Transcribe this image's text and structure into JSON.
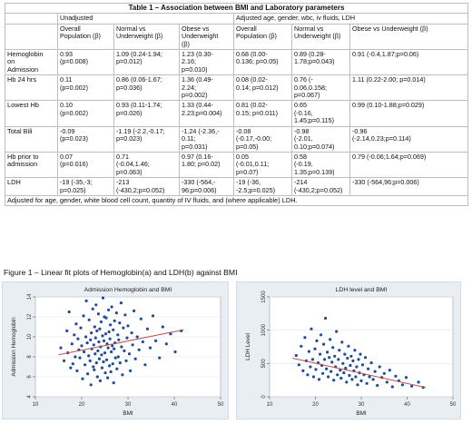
{
  "table": {
    "title": "Table 1 – Association between BMI and Laboratory parameters",
    "group_headers": [
      "Unadjusted",
      "Adjusted age, gender, wbc, iv fluids, LDH"
    ],
    "column_headers": [
      "Overall\nPopulation (β)",
      "Normal vs\nUnderweight (β)",
      "Obese vs\nUnderweight\n(β)",
      "Overall\nPopulation (β)",
      "Normal vs\nUnderweight (β)",
      "Obese vs Underweight (β)"
    ],
    "rows": [
      {
        "label": "Hemoglobin\non\nAdmission",
        "cells": [
          "0.93\n(p=0.008)",
          "1.09 (0.24-1.94;\np=0.012)",
          "1.23 (0.30-\n2.16;\np=0.010)",
          "0.68 (0.00-\n0.136; p=0.05)",
          "0.89 (0.28-\n1.78;p=0.043)",
          "0.91 (-0.4,1.87;p=0.06)"
        ]
      },
      {
        "label": "Hb 24 hrs",
        "cells": [
          "0.11\n(p=0.002)",
          "0.86 (0.06-1.67;\np=0.036)",
          "1.36 (0.49-\n2.24;\np=0.002)",
          "0.08 (0.02-\n0.14; p=0.012)",
          "0.76 (-\n0.06,0.158;\np=0.067)",
          "1.11 (0.22-2.00; p=0.014)"
        ]
      },
      {
        "label": "Lowest Hb",
        "cells": [
          "0.10\n(p=0.002)",
          "0.93 (0.11-1.74;\np=0.026)",
          "1.33 (0.44-\n2.23;p=0.004)",
          "0.81 (0.02-\n0.15; p=0.011)",
          "0.65\n(-0.16,\n1.45;p=0.115)",
          "0.99 (0.10-1.88;p=0.029)"
        ]
      },
      {
        "label": "Total Bili",
        "cells": [
          "-0.09\n(p=0.023)",
          "-1.19 (-2.2,-0.17;\np=0.023)",
          "-1.24 (-2.36,-\n0.11;\np=0.031)",
          "-0.08\n(-0.17,-0.00;\np=0.05)",
          "-0.98\n(-2.01,\n0.10;p=0.074)",
          "-0.96\n(-2.14,0.23;p=0.114)"
        ]
      },
      {
        "label": "Hb prior to\nadmission",
        "cells": [
          "0.07\n(p=0.016)",
          "0.71\n(-0.04,1.46;\np=0.063)",
          "0.97 (0.16-\n1.80; p=0.02)",
          "0.05\n(-0.01,0.11;\np=0.07)",
          "0.58\n(-0.19,\n1.35;p=0.139)",
          "0.79 (-0.06;1.64;p=0.069)"
        ]
      },
      {
        "label": "LDH",
        "cells": [
          "-19 (-35,-3;\np=0.025)",
          "-213\n(-430,2;p=0.052)",
          "-330 (-564,-\n96;p=0.006)",
          "-19 (-36,\n-2.5;p=0.025)",
          "-214\n(-430,2;p=0.052)",
          "-330 (-564,96;p=0.006)"
        ]
      }
    ],
    "footnote": "Adjusted for age, gender, white blood cell count, quantity of IV fluids, and (where applicable) LDH."
  },
  "figure_caption": "Figure 1 – Linear fit plots of Hemoglobin(a)  and LDH(b)  against BMI",
  "chart_data": [
    {
      "type": "scatter",
      "title": "Admission Hemoglobin and BMI",
      "xlabel": "BMI",
      "ylabel": "Admission Hemoglobin",
      "xlim": [
        10,
        50
      ],
      "ylim": [
        4,
        14
      ],
      "xticks": [
        10,
        20,
        30,
        40,
        50
      ],
      "yticks": [
        4,
        6,
        8,
        10,
        12,
        14
      ],
      "fit_line": {
        "x": [
          15,
          42
        ],
        "y": [
          8.2,
          10.7
        ]
      },
      "points": [
        [
          15.5,
          8.9
        ],
        [
          16.2,
          7.6
        ],
        [
          16.8,
          10.6
        ],
        [
          17.0,
          8.4
        ],
        [
          17.3,
          12.5
        ],
        [
          17.6,
          6.9
        ],
        [
          17.9,
          9.3
        ],
        [
          18.1,
          7.3
        ],
        [
          18.4,
          10.2
        ],
        [
          18.6,
          8.0
        ],
        [
          18.8,
          11.3
        ],
        [
          19.0,
          6.6
        ],
        [
          19.2,
          9.8
        ],
        [
          19.4,
          8.7
        ],
        [
          19.6,
          7.9
        ],
        [
          19.8,
          10.9
        ],
        [
          20.0,
          9.1
        ],
        [
          20.2,
          5.8
        ],
        [
          20.4,
          12.1
        ],
        [
          20.5,
          8.5
        ],
        [
          20.7,
          7.2
        ],
        [
          20.9,
          10.0
        ],
        [
          21.0,
          13.6
        ],
        [
          21.2,
          9.4
        ],
        [
          21.3,
          6.3
        ],
        [
          21.5,
          8.1
        ],
        [
          21.6,
          11.7
        ],
        [
          21.8,
          7.6
        ],
        [
          21.9,
          9.7
        ],
        [
          22.0,
          5.2
        ],
        [
          22.1,
          10.4
        ],
        [
          22.2,
          8.8
        ],
        [
          22.4,
          12.8
        ],
        [
          22.5,
          7.0
        ],
        [
          22.6,
          9.2
        ],
        [
          22.7,
          6.7
        ],
        [
          22.8,
          11.0
        ],
        [
          22.9,
          8.3
        ],
        [
          23.0,
          9.9
        ],
        [
          23.1,
          13.2
        ],
        [
          23.2,
          7.4
        ],
        [
          23.3,
          10.6
        ],
        [
          23.4,
          6.0
        ],
        [
          23.5,
          8.6
        ],
        [
          23.6,
          12.3
        ],
        [
          23.7,
          9.5
        ],
        [
          23.8,
          7.8
        ],
        [
          23.9,
          10.8
        ],
        [
          24.0,
          5.6
        ],
        [
          24.1,
          9.0
        ],
        [
          24.2,
          11.5
        ],
        [
          24.3,
          8.2
        ],
        [
          24.4,
          6.9
        ],
        [
          24.5,
          10.1
        ],
        [
          24.6,
          13.9
        ],
        [
          24.7,
          7.5
        ],
        [
          24.8,
          9.6
        ],
        [
          24.9,
          12.0
        ],
        [
          25.0,
          8.4
        ],
        [
          25.1,
          6.4
        ],
        [
          25.2,
          10.3
        ],
        [
          25.3,
          11.9
        ],
        [
          25.4,
          7.7
        ],
        [
          25.5,
          9.3
        ],
        [
          25.6,
          5.9
        ],
        [
          25.7,
          8.9
        ],
        [
          25.8,
          12.7
        ],
        [
          25.9,
          10.5
        ],
        [
          26.0,
          7.1
        ],
        [
          26.1,
          9.8
        ],
        [
          26.2,
          11.2
        ],
        [
          26.3,
          6.5
        ],
        [
          26.4,
          8.5
        ],
        [
          26.5,
          13.0
        ],
        [
          26.6,
          9.1
        ],
        [
          26.7,
          7.3
        ],
        [
          26.8,
          10.7
        ],
        [
          26.9,
          5.4
        ],
        [
          27.0,
          8.8
        ],
        [
          27.1,
          11.6
        ],
        [
          27.2,
          9.4
        ],
        [
          27.3,
          7.9
        ],
        [
          27.5,
          12.4
        ],
        [
          27.6,
          6.8
        ],
        [
          27.8,
          10.2
        ],
        [
          27.9,
          8.0
        ],
        [
          28.0,
          9.7
        ],
        [
          28.2,
          11.4
        ],
        [
          28.3,
          7.4
        ],
        [
          28.5,
          13.4
        ],
        [
          28.6,
          9.0
        ],
        [
          28.8,
          6.2
        ],
        [
          29.0,
          10.9
        ],
        [
          29.2,
          8.6
        ],
        [
          29.4,
          12.2
        ],
        [
          29.6,
          7.6
        ],
        [
          29.8,
          9.9
        ],
        [
          30.0,
          11.1
        ],
        [
          30.3,
          8.3
        ],
        [
          30.5,
          6.6
        ],
        [
          30.8,
          10.4
        ],
        [
          31.0,
          9.2
        ],
        [
          31.3,
          12.6
        ],
        [
          31.6,
          7.8
        ],
        [
          32.0,
          10.0
        ],
        [
          32.4,
          8.7
        ],
        [
          32.8,
          11.8
        ],
        [
          33.2,
          9.5
        ],
        [
          33.7,
          7.2
        ],
        [
          34.2,
          10.8
        ],
        [
          34.8,
          8.9
        ],
        [
          35.4,
          12.1
        ],
        [
          36.0,
          9.6
        ],
        [
          36.8,
          7.9
        ],
        [
          37.5,
          11.0
        ],
        [
          38.3,
          9.3
        ],
        [
          39.2,
          10.3
        ],
        [
          40.2,
          8.5
        ],
        [
          41.5,
          10.6
        ]
      ]
    },
    {
      "type": "scatter",
      "title": "LDH level and BMI",
      "xlabel": "BMI",
      "ylabel": "LDH Level",
      "xlim": [
        10,
        50
      ],
      "ylim": [
        0,
        1500
      ],
      "xticks": [
        10,
        20,
        30,
        40,
        50
      ],
      "yticks": [
        0,
        500,
        1000,
        1500
      ],
      "fit_line": {
        "x": [
          15,
          44
        ],
        "y": [
          580,
          140
        ]
      },
      "points": [
        [
          15.8,
          620
        ],
        [
          16.4,
          480
        ],
        [
          16.9,
          760
        ],
        [
          17.3,
          390
        ],
        [
          17.7,
          890
        ],
        [
          18.0,
          540
        ],
        [
          18.3,
          330
        ],
        [
          18.6,
          680
        ],
        [
          18.9,
          450
        ],
        [
          19.1,
          1020
        ],
        [
          19.4,
          560
        ],
        [
          19.6,
          300
        ],
        [
          19.9,
          720
        ],
        [
          20.1,
          410
        ],
        [
          20.3,
          840
        ],
        [
          20.6,
          510
        ],
        [
          20.8,
          260
        ],
        [
          21.0,
          640
        ],
        [
          21.2,
          930
        ],
        [
          21.4,
          470
        ],
        [
          21.6,
          350
        ],
        [
          21.8,
          790
        ],
        [
          22.0,
          560
        ],
        [
          22.2,
          1180
        ],
        [
          22.4,
          420
        ],
        [
          22.6,
          670
        ],
        [
          22.8,
          300
        ],
        [
          23.0,
          590
        ],
        [
          23.2,
          860
        ],
        [
          23.4,
          380
        ],
        [
          23.6,
          520
        ],
        [
          23.8,
          740
        ],
        [
          24.0,
          250
        ],
        [
          24.2,
          610
        ],
        [
          24.4,
          450
        ],
        [
          24.6,
          980
        ],
        [
          24.8,
          330
        ],
        [
          25.0,
          560
        ],
        [
          25.2,
          700
        ],
        [
          25.4,
          400
        ],
        [
          25.6,
          280
        ],
        [
          25.8,
          820
        ],
        [
          26.0,
          500
        ],
        [
          26.2,
          360
        ],
        [
          26.4,
          640
        ],
        [
          26.6,
          430
        ],
        [
          26.8,
          220
        ],
        [
          27.0,
          580
        ],
        [
          27.2,
          760
        ],
        [
          27.4,
          320
        ],
        [
          27.6,
          470
        ],
        [
          27.8,
          610
        ],
        [
          28.0,
          260
        ],
        [
          28.2,
          540
        ],
        [
          28.4,
          390
        ],
        [
          28.6,
          700
        ],
        [
          28.8,
          300
        ],
        [
          29.0,
          450
        ],
        [
          29.2,
          180
        ],
        [
          29.4,
          560
        ],
        [
          29.6,
          360
        ],
        [
          29.8,
          640
        ],
        [
          30.0,
          240
        ],
        [
          30.3,
          480
        ],
        [
          30.6,
          330
        ],
        [
          30.9,
          590
        ],
        [
          31.2,
          200
        ],
        [
          31.5,
          420
        ],
        [
          31.8,
          300
        ],
        [
          32.2,
          510
        ],
        [
          32.6,
          260
        ],
        [
          33.0,
          380
        ],
        [
          33.5,
          170
        ],
        [
          34.0,
          450
        ],
        [
          34.5,
          290
        ],
        [
          35.0,
          350
        ],
        [
          35.6,
          220
        ],
        [
          36.2,
          400
        ],
        [
          36.8,
          150
        ],
        [
          37.5,
          310
        ],
        [
          38.2,
          240
        ],
        [
          39.0,
          180
        ],
        [
          39.8,
          290
        ],
        [
          41.0,
          160
        ],
        [
          42.5,
          220
        ],
        [
          43.5,
          140
        ]
      ]
    }
  ]
}
